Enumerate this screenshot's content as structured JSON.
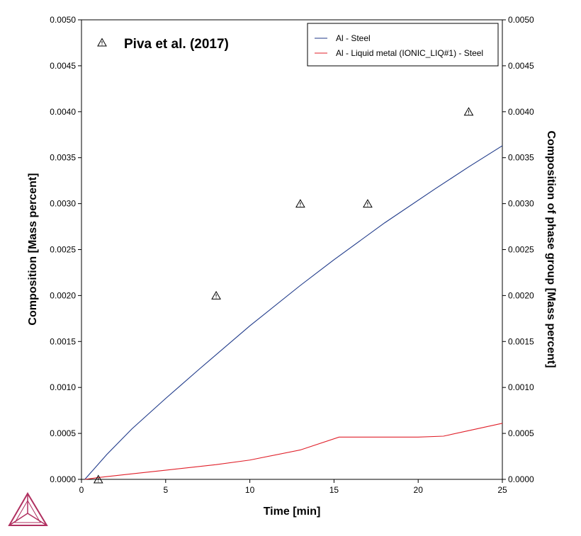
{
  "chart_data": {
    "type": "line",
    "xlabel": "Time [min]",
    "ylabel": "Composition [Mass percent]",
    "y2label": "Composition of phase group [Mass percent]",
    "xlim": [
      0,
      25
    ],
    "ylim": [
      0,
      0.005
    ],
    "x_ticks": [
      "0",
      "5",
      "10",
      "15",
      "20",
      "25"
    ],
    "y_ticks": [
      "0.0000",
      "0.0005",
      "0.0010",
      "0.0015",
      "0.0020",
      "0.0025",
      "0.0030",
      "0.0035",
      "0.0040",
      "0.0045",
      "0.0050"
    ],
    "grid": false,
    "legend_position": "top-right",
    "annotation": "Piva et al. (2017)",
    "series": [
      {
        "name": "Al - Steel",
        "color": "#1f3a8a",
        "axis": "left",
        "x": [
          0.2,
          1.5,
          3,
          5,
          7,
          10,
          13,
          15,
          18,
          21,
          23,
          25
        ],
        "y": [
          0.0,
          0.00027,
          0.00055,
          0.00088,
          0.0012,
          0.00167,
          0.00211,
          0.00239,
          0.00279,
          0.00316,
          0.0034,
          0.00363
        ]
      },
      {
        "name": "Al - Liquid metal (IONIC_LIQ#1) - Steel",
        "color": "#e0202a",
        "axis": "right",
        "x": [
          0.2,
          1,
          3,
          5,
          8,
          10,
          13,
          15.3,
          17,
          20,
          21.5,
          23,
          25
        ],
        "y": [
          0.0,
          2e-05,
          6e-05,
          0.0001,
          0.00016,
          0.00021,
          0.00032,
          0.00046,
          0.00046,
          0.00046,
          0.00047,
          0.00053,
          0.00061
        ]
      },
      {
        "name": "Piva et al. (2017)",
        "type": "scatter",
        "marker": "triangle",
        "color": "#000000",
        "x": [
          1,
          8,
          13,
          17,
          23
        ],
        "y": [
          0.0,
          0.002,
          0.003,
          0.003,
          0.004
        ]
      }
    ]
  }
}
